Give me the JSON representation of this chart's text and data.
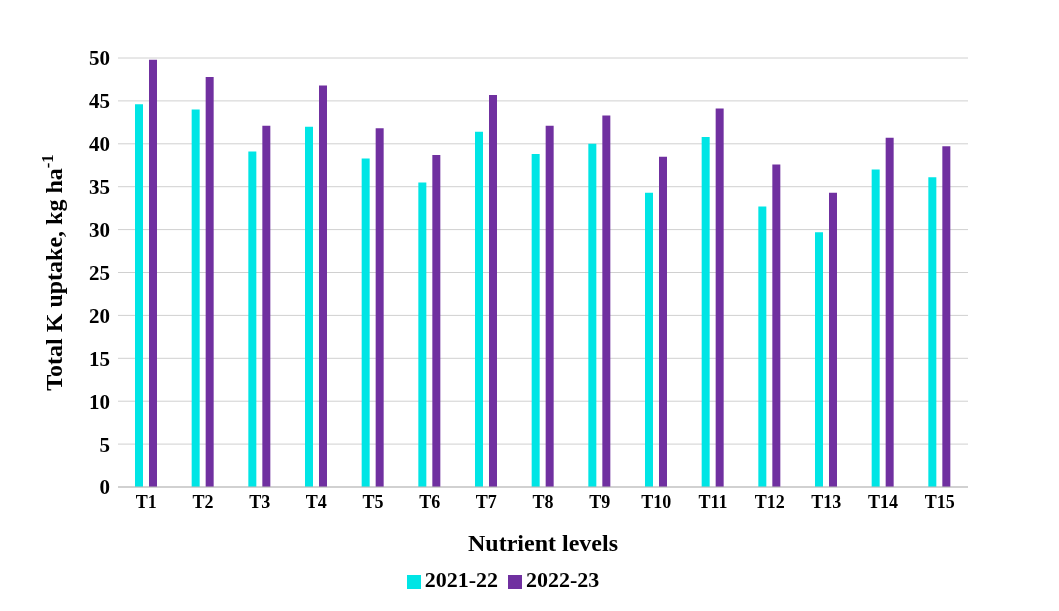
{
  "chart_data": {
    "type": "bar",
    "xlabel": "Nutrient levels",
    "ylabel": "Total K uptake, kg ha$^{-1}$",
    "categories": [
      "T1",
      "T2",
      "T3",
      "T4",
      "T5",
      "T6",
      "T7",
      "T8",
      "T9",
      "T10",
      "T11",
      "T12",
      "T13",
      "T14",
      "T15"
    ],
    "series": [
      {
        "name": "2021-22",
        "color": "#00e5e5",
        "values": [
          44.6,
          44.0,
          39.1,
          42.0,
          38.3,
          35.5,
          41.4,
          38.8,
          40.0,
          34.3,
          40.8,
          32.7,
          29.7,
          37.0,
          36.1
        ]
      },
      {
        "name": "2022-23",
        "color": "#7030a0",
        "values": [
          49.8,
          47.8,
          42.1,
          46.8,
          41.8,
          38.7,
          45.7,
          42.1,
          43.3,
          38.5,
          44.1,
          37.6,
          34.3,
          40.7,
          39.7
        ]
      }
    ],
    "ylim": [
      0,
      50
    ],
    "yticks": [
      0,
      5,
      10,
      15,
      20,
      25,
      30,
      35,
      40,
      45,
      50
    ],
    "grid": "y",
    "legend": "bottom"
  }
}
